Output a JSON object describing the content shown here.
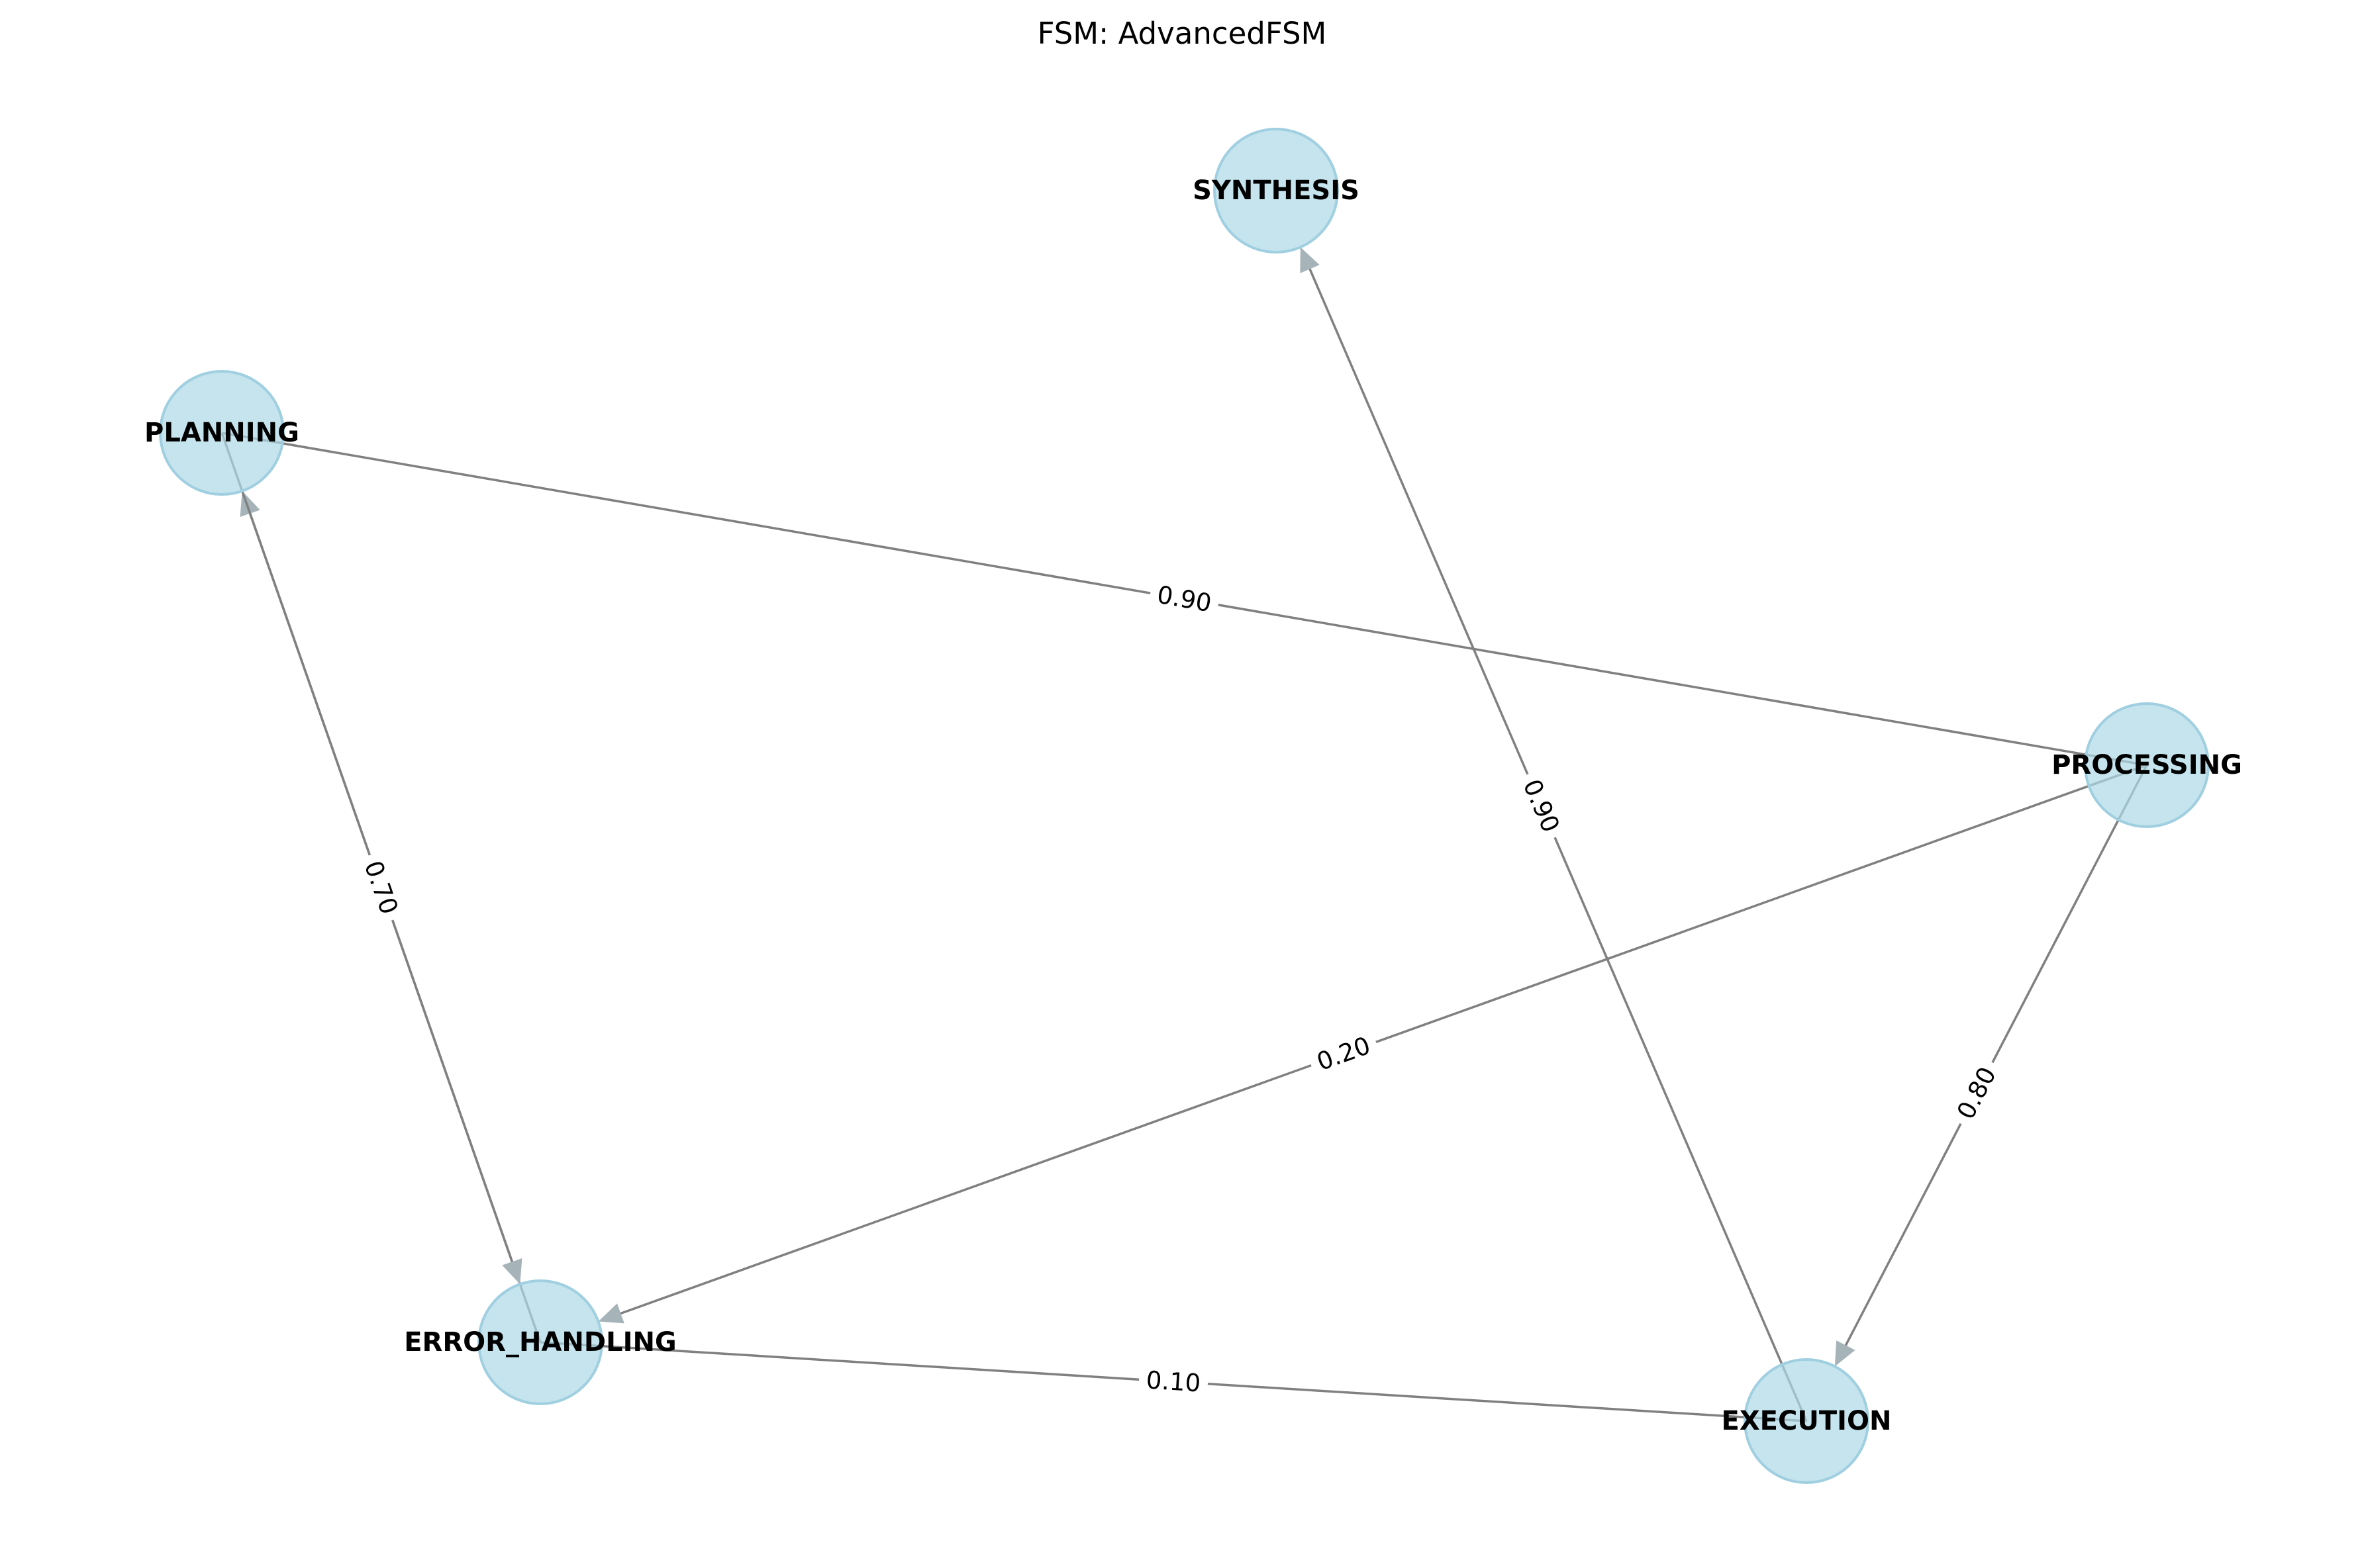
{
  "diagram": {
    "title": "FSM: AdvancedFSM",
    "colors": {
      "node_fill": "#add8e6",
      "node_stroke": "#9fcfe0",
      "edge": "#808080",
      "arrowhead": "#a6b4ba",
      "label_background": "#ffffff"
    },
    "nodes": [
      {
        "id": "SYNTHESIS",
        "label": "SYNTHESIS"
      },
      {
        "id": "PLANNING",
        "label": "PLANNING"
      },
      {
        "id": "PROCESSING",
        "label": "PROCESSING"
      },
      {
        "id": "ERROR_HANDLING",
        "label": "ERROR_HANDLING"
      },
      {
        "id": "EXECUTION",
        "label": "EXECUTION"
      }
    ],
    "edges": [
      {
        "from": "PROCESSING",
        "to": "PLANNING",
        "label": "0.90",
        "arrow": false
      },
      {
        "from": "EXECUTION",
        "to": "SYNTHESIS",
        "label": "0.90",
        "arrow": true
      },
      {
        "from": "ERROR_HANDLING",
        "to": "PLANNING",
        "label": "0.70",
        "arrow": true
      },
      {
        "from": "PLANNING",
        "to": "ERROR_HANDLING",
        "label": "",
        "arrow": true
      },
      {
        "from": "PROCESSING",
        "to": "ERROR_HANDLING",
        "label": "0.20",
        "arrow": true
      },
      {
        "from": "PROCESSING",
        "to": "EXECUTION",
        "label": "0.80",
        "arrow": true
      },
      {
        "from": "EXECUTION",
        "to": "ERROR_HANDLING",
        "label": "0.10",
        "arrow": false
      }
    ]
  }
}
